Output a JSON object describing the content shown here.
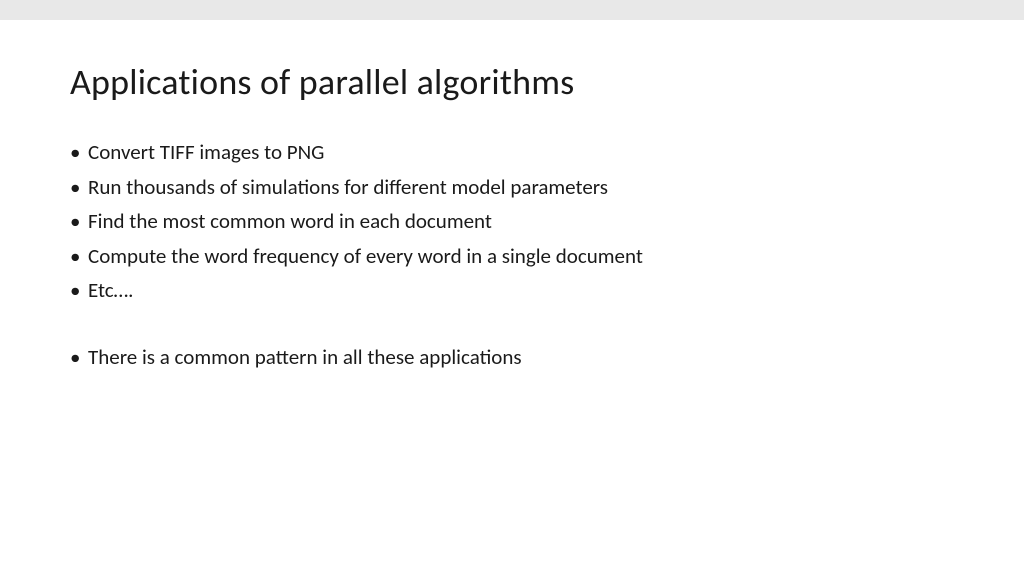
{
  "slide": {
    "title": "Applications of parallel algorithms",
    "bullets": [
      "Convert TIFF images to PNG",
      "Run thousands of simulations for different model parameters",
      "Find the most common word in each document",
      "Compute the word frequency of every word in a single document",
      "Etc…."
    ],
    "bullets_after_gap": [
      "There is a common pattern in all these applications"
    ]
  },
  "styling": {
    "background_color": "#ffffff",
    "top_bar_color": "#e8e8e8",
    "text_color": "#1a1a1a",
    "title_fontsize": 36,
    "bullet_fontsize": 21,
    "font_family": "Calibri"
  }
}
